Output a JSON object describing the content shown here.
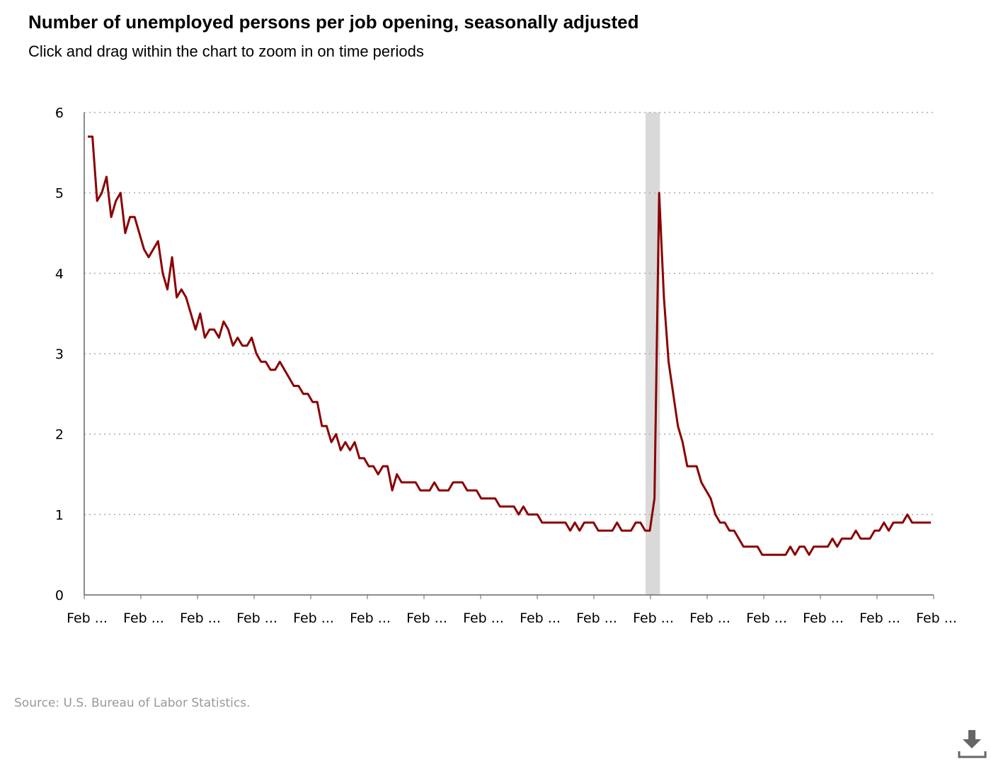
{
  "header": {
    "title": "Number of unemployed persons per job opening, seasonally adjusted",
    "subtitle": "Click and drag within the chart to zoom in on time periods"
  },
  "footer": {
    "source": "Source: U.S. Bureau of Labor Statistics."
  },
  "download_icon": "download-icon",
  "colors": {
    "line": "#8b0000",
    "recession": "#d9d9d9",
    "grid": "#aaaaaa",
    "axis": "#666666",
    "source_text": "#999999"
  },
  "chart_data": {
    "type": "line",
    "title": "Number of unemployed persons per job opening, seasonally adjusted",
    "xlabel": "",
    "ylabel": "",
    "ylim": [
      0,
      6
    ],
    "y_ticks": [
      "0",
      "1",
      "2",
      "3",
      "4",
      "5",
      "6"
    ],
    "x_tick_labels": [
      "Feb ...",
      "Feb ...",
      "Feb ...",
      "Feb ...",
      "Feb ...",
      "Feb ...",
      "Feb ...",
      "Feb ...",
      "Feb ...",
      "Feb ...",
      "Feb ...",
      "Feb ...",
      "Feb ...",
      "Feb ...",
      "Feb ...",
      "Feb ..."
    ],
    "grid": "horizontal dotted",
    "legend": "none",
    "recession_band": {
      "from_month_index": 120,
      "to_month_index": 122
    },
    "series": [
      {
        "values": [
          5.7,
          5.7,
          4.9,
          5.0,
          5.2,
          4.7,
          4.9,
          5.0,
          4.5,
          4.7,
          4.7,
          4.5,
          4.3,
          4.2,
          4.3,
          4.4,
          4.0,
          3.8,
          4.2,
          3.7,
          3.8,
          3.7,
          3.5,
          3.3,
          3.5,
          3.2,
          3.3,
          3.3,
          3.2,
          3.4,
          3.3,
          3.1,
          3.2,
          3.1,
          3.1,
          3.2,
          3.0,
          2.9,
          2.9,
          2.8,
          2.8,
          2.9,
          2.8,
          2.7,
          2.6,
          2.6,
          2.5,
          2.5,
          2.4,
          2.4,
          2.1,
          2.1,
          1.9,
          2.0,
          1.8,
          1.9,
          1.8,
          1.9,
          1.7,
          1.7,
          1.6,
          1.6,
          1.5,
          1.6,
          1.6,
          1.3,
          1.5,
          1.4,
          1.4,
          1.4,
          1.4,
          1.3,
          1.3,
          1.3,
          1.4,
          1.3,
          1.3,
          1.3,
          1.4,
          1.4,
          1.4,
          1.3,
          1.3,
          1.3,
          1.2,
          1.2,
          1.2,
          1.2,
          1.1,
          1.1,
          1.1,
          1.1,
          1.0,
          1.1,
          1.0,
          1.0,
          1.0,
          0.9,
          0.9,
          0.9,
          0.9,
          0.9,
          0.9,
          0.8,
          0.9,
          0.8,
          0.9,
          0.9,
          0.9,
          0.8,
          0.8,
          0.8,
          0.8,
          0.9,
          0.8,
          0.8,
          0.8,
          0.9,
          0.9,
          0.8,
          0.8,
          1.2,
          5.0,
          3.7,
          2.9,
          2.5,
          2.1,
          1.9,
          1.6,
          1.6,
          1.6,
          1.4,
          1.3,
          1.2,
          1.0,
          0.9,
          0.9,
          0.8,
          0.8,
          0.7,
          0.6,
          0.6,
          0.6,
          0.6,
          0.5,
          0.5,
          0.5,
          0.5,
          0.5,
          0.5,
          0.6,
          0.5,
          0.6,
          0.6,
          0.5,
          0.6,
          0.6,
          0.6,
          0.6,
          0.7,
          0.6,
          0.7,
          0.7,
          0.7,
          0.8,
          0.7,
          0.7,
          0.7,
          0.8,
          0.8,
          0.9,
          0.8,
          0.9,
          0.9,
          0.9,
          1.0,
          0.9,
          0.9,
          0.9,
          0.9,
          0.9
        ]
      }
    ]
  }
}
